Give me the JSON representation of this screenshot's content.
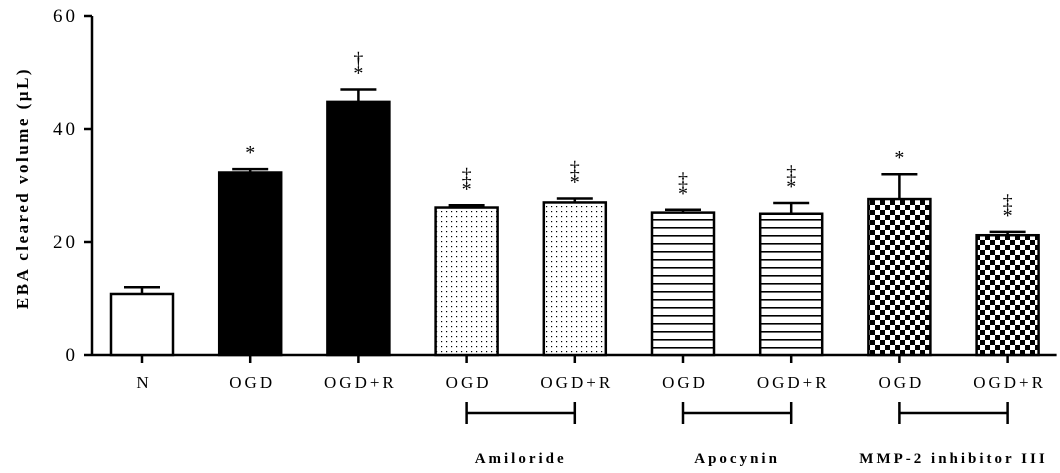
{
  "chart_data": {
    "type": "bar",
    "ylabel": "EBA cleared volume (µL)",
    "ylim": [
      0,
      60
    ],
    "yticks": [
      0,
      20,
      40,
      60
    ],
    "categories": [
      "N",
      "OGD",
      "OGD+R",
      "OGD",
      "OGD+R",
      "OGD",
      "OGD+R",
      "OGD",
      "OGD+R"
    ],
    "values": [
      10.8,
      32.3,
      44.8,
      26.1,
      27.0,
      25.2,
      25.0,
      27.6,
      21.2
    ],
    "errors": [
      1.2,
      0.6,
      2.2,
      0.4,
      0.7,
      0.5,
      1.9,
      4.4,
      0.6
    ],
    "fills": [
      "white",
      "black",
      "black",
      "dots",
      "dots",
      "hlines",
      "hlines",
      "checker",
      "checker"
    ],
    "annotations": [
      [],
      [
        "*"
      ],
      [
        "*",
        "†"
      ],
      [
        "*",
        "‡"
      ],
      [
        "*",
        "‡"
      ],
      [
        "*",
        "‡"
      ],
      [
        "*",
        "‡"
      ],
      [
        "*"
      ],
      [
        "*",
        "‡"
      ]
    ],
    "groups": [
      {
        "label": "Amiloride",
        "from": 3,
        "to": 4
      },
      {
        "label": "Apocynin",
        "from": 5,
        "to": 6
      },
      {
        "label": "MMP-2 inhibitor III",
        "from": 7,
        "to": 8
      }
    ],
    "grid": false,
    "legend": "none"
  }
}
